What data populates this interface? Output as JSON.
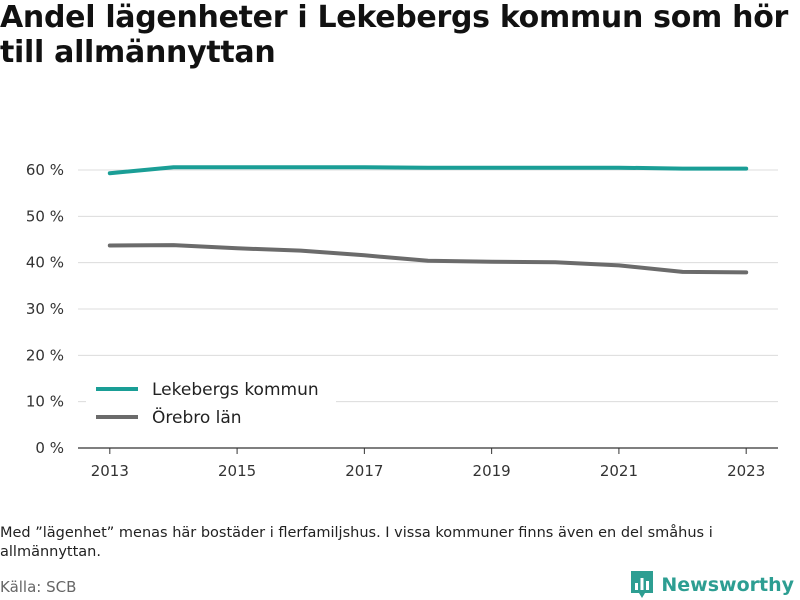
{
  "title": "Andel lägenheter i Lekebergs kommun som hör till allmännyttan",
  "note": "Med ”lägenhet” menas här bostäder i flerfamiljshus. I vissa kommuner finns även en del småhus i allmännyttan.",
  "source": "Källa: SCB",
  "brand": {
    "name": "Newsworthy",
    "icon": "newsworthy-logo-icon",
    "color": "#2d9e92"
  },
  "chart_data": {
    "type": "line",
    "x": [
      2013,
      2014,
      2015,
      2016,
      2017,
      2018,
      2019,
      2020,
      2021,
      2022,
      2023
    ],
    "x_ticks": [
      "2013",
      "2015",
      "2017",
      "2019",
      "2021",
      "2023"
    ],
    "y_ticks": [
      "0 %",
      "10 %",
      "20 %",
      "30 %",
      "40 %",
      "50 %",
      "60 %"
    ],
    "xlim": [
      2012.5,
      2023.5
    ],
    "ylim": [
      0,
      60
    ],
    "grid": true,
    "legend_position": "bottom-left",
    "series": [
      {
        "name": "Lekebergs kommun",
        "color": "#1a9e96",
        "values": [
          59.3,
          60.6,
          60.6,
          60.6,
          60.6,
          60.5,
          60.5,
          60.5,
          60.5,
          60.3,
          60.3
        ]
      },
      {
        "name": "Örebro län",
        "color": "#6b6b6b",
        "values": [
          43.7,
          43.8,
          43.1,
          42.6,
          41.6,
          40.4,
          40.2,
          40.1,
          39.4,
          38.0,
          37.9
        ]
      }
    ]
  }
}
